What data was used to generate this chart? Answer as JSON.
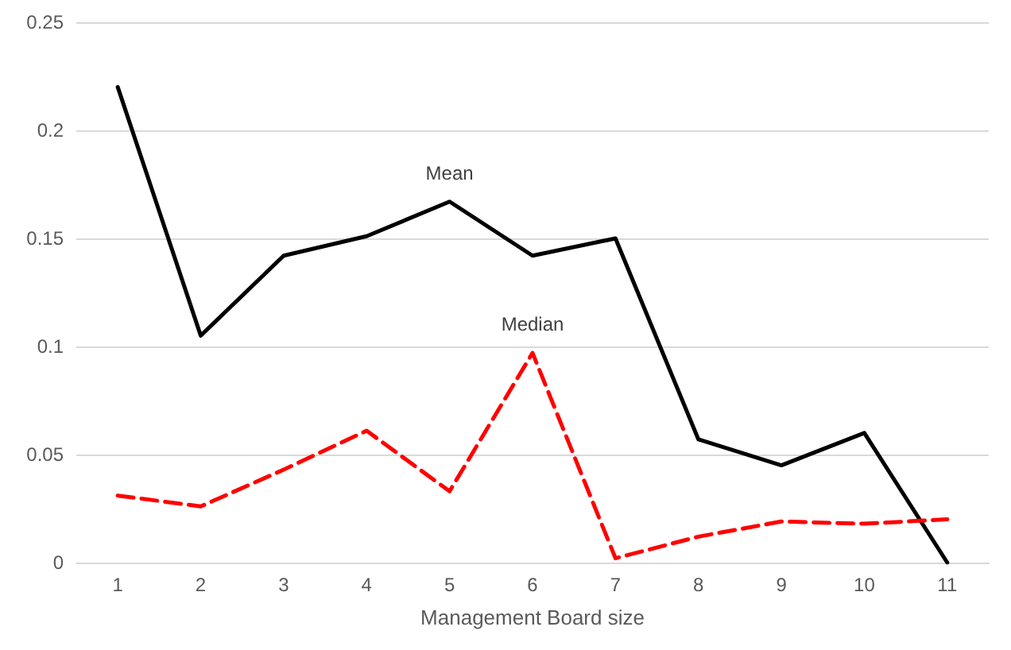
{
  "chart_data": {
    "type": "line",
    "xlabel": "Management Board size",
    "categories": [
      "1",
      "2",
      "3",
      "4",
      "5",
      "6",
      "7",
      "8",
      "9",
      "10",
      "11"
    ],
    "series": [
      {
        "name": "Mean",
        "color": "#000000",
        "line_style": "solid",
        "values": [
          0.22,
          0.105,
          0.142,
          0.151,
          0.167,
          0.142,
          0.15,
          0.057,
          0.045,
          0.06,
          0
        ]
      },
      {
        "name": "Median",
        "color": "#ff0000",
        "line_style": "dashed",
        "values": [
          0.031,
          0.026,
          0.043,
          0.061,
          0.033,
          0.097,
          0.002,
          0.012,
          0.019,
          0.018,
          0.02
        ]
      }
    ],
    "ylim": [
      0,
      0.25
    ],
    "yticks": [
      0,
      0.05,
      0.1,
      0.15,
      0.2,
      0.25
    ],
    "grid": "y",
    "legend": false,
    "marker": "none"
  }
}
